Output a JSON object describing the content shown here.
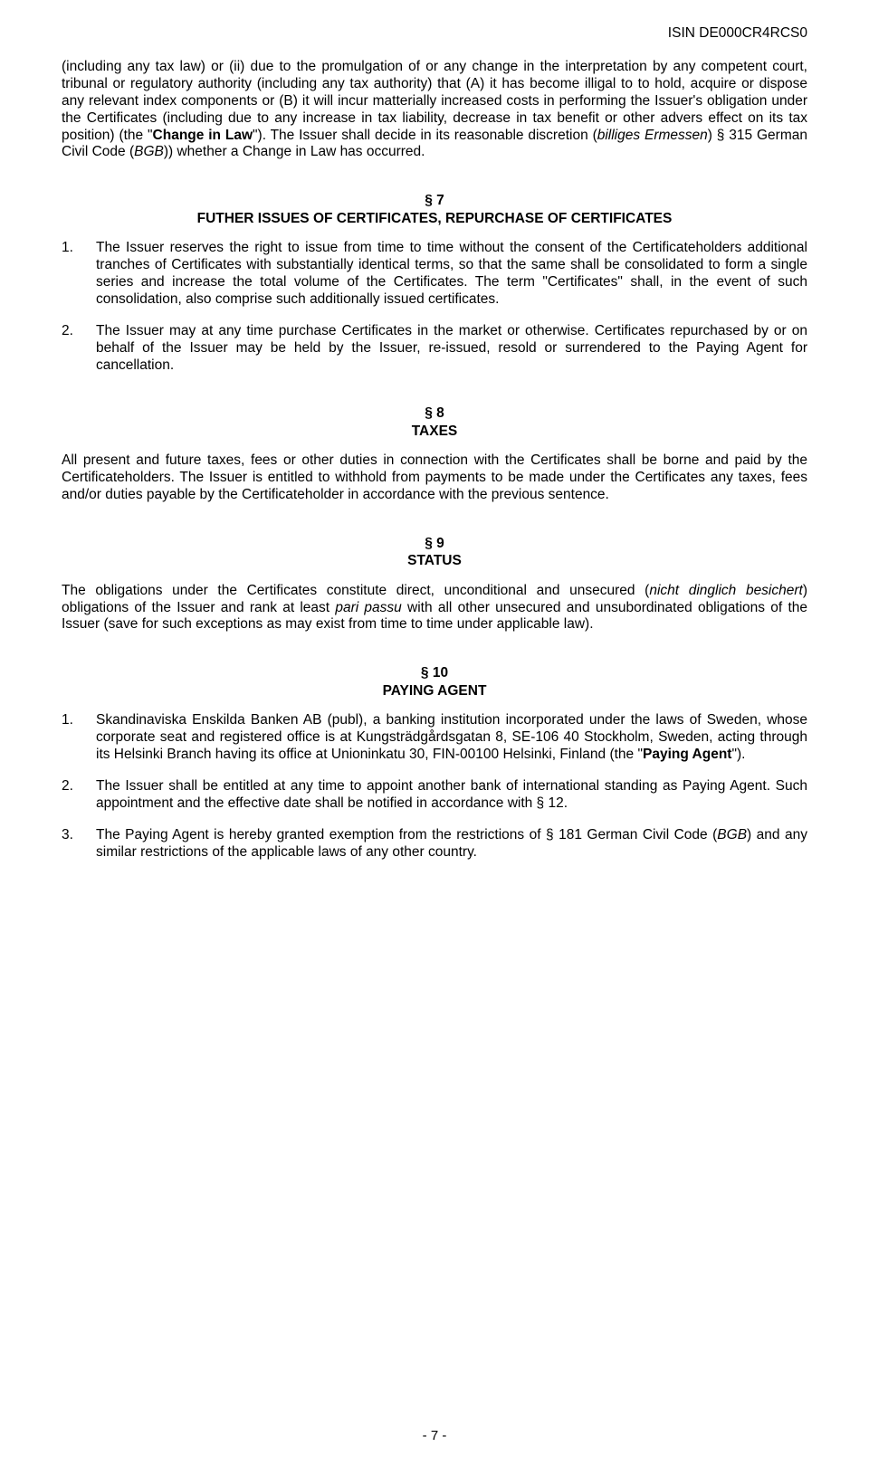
{
  "header": {
    "isin": "ISIN DE000CR4RCS0"
  },
  "intro": {
    "pre_bold": "(including any tax law) or (ii) due to the promulgation of or any change in the interpretation by any competent court, tribunal or regulatory authority (including any tax authority) that (A) it has become illigal to to hold, acquire or dispose any relevant index components or (B) it will incur matterially increased costs in performing the Issuer's obligation under the Certificates (including due to any increase in tax liability, decrease in tax benefit or other advers effect on its tax position) (the \"",
    "bold": "Change in Law",
    "post_bold_pre_italic": "\"). The Issuer shall decide in its reasonable discretion (",
    "italic1": "billiges Ermessen",
    "post_italic1": ") § 315 German Civil Code (",
    "italic2": "BGB",
    "post_italic2": ")) whether a Change in Law has occurred."
  },
  "s7": {
    "num": "§ 7",
    "title": "FUTHER ISSUES OF CERTIFICATES, REPURCHASE OF CERTIFICATES",
    "items": [
      {
        "n": "1.",
        "t": "The Issuer reserves the right to issue from time to time without the consent of the Certificateholders additional tranches of Certificates with substantially identical terms, so that the same shall be consolidated to form a single series and increase the total volume of the Certificates.  The term \"Certificates\" shall, in the event of such consolidation, also comprise such additionally issued certificates."
      },
      {
        "n": "2.",
        "t": "The Issuer may at any time purchase Certificates in the market or otherwise.  Certificates repurchased by or on behalf of the Issuer may be held by the Issuer, re-issued, resold or surrendered to the Paying Agent for cancellation."
      }
    ]
  },
  "s8": {
    "num": "§ 8",
    "title": "TAXES",
    "body": "All present and future taxes, fees or other duties in connection with the Certificates shall be borne and paid by the Certificateholders. The Issuer is entitled to withhold from payments to be made under the Certificates any taxes, fees and/or duties payable by the Certificateholder in accordance with the previous sentence."
  },
  "s9": {
    "num": "§ 9",
    "title": "STATUS",
    "pre_i1": "The obligations under the Certificates constitute direct, unconditional and unsecured (",
    "i1": "nicht dinglich besichert",
    "mid": ") obligations of the Issuer and rank at least ",
    "i2": "pari passu",
    "post": " with all other unsecured and unsubordinated obligations of the Issuer (save for such exceptions as may exist from time to time under applicable law)."
  },
  "s10": {
    "num": "§ 10",
    "title": "PAYING AGENT",
    "item1": {
      "n": "1.",
      "pre": "Skandinaviska Enskilda Banken AB (publ), a banking institution incorporated under the laws of Sweden, whose corporate seat and registered office is at Kungsträdgårdsgatan 8, SE-106 40 Stockholm, Sweden, acting through its Helsinki Branch having its office at Unioninkatu 30, FIN-00100 Helsinki, Finland (the \"",
      "bold": "Paying Agent",
      "post": "\")."
    },
    "item2": {
      "n": "2.",
      "t": "The Issuer shall be entitled at any time to appoint another bank of international standing as Paying Agent. Such appointment and the effective date shall be notified in accordance with § 12."
    },
    "item3": {
      "n": "3.",
      "pre": "The Paying Agent is hereby granted exemption from the restrictions of § 181 German Civil Code (",
      "i": "BGB",
      "post": ") and any similar restrictions of the applicable laws of any other country."
    }
  },
  "footer": {
    "pagenum": "- 7 -"
  }
}
